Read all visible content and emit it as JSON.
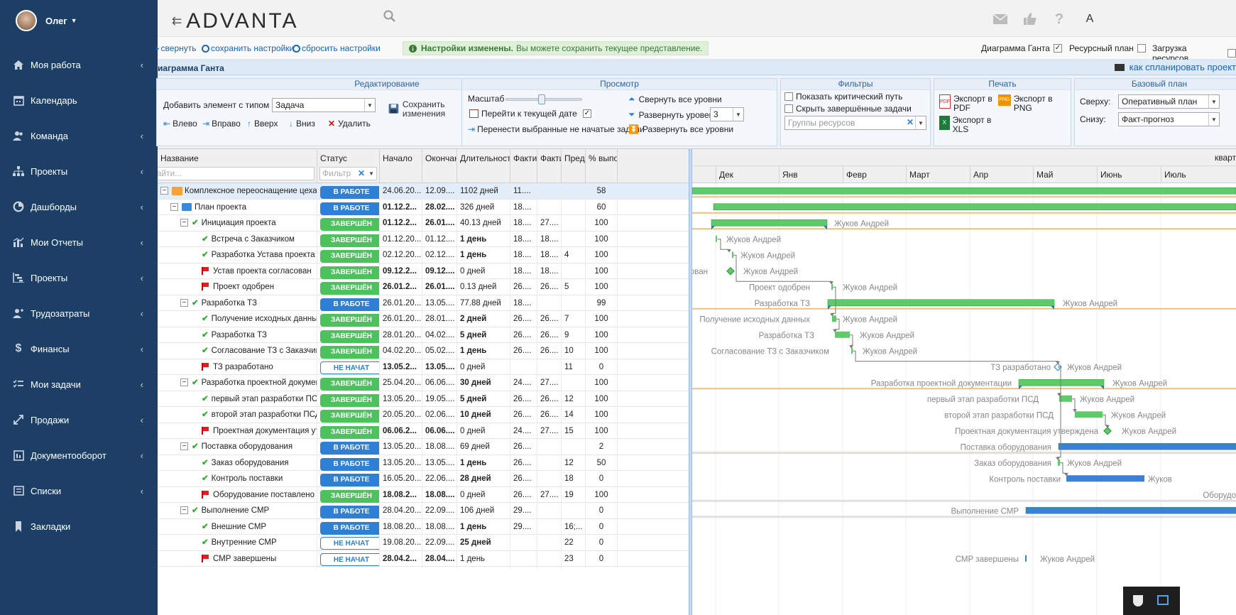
{
  "user": {
    "name": "Олег"
  },
  "nav": [
    {
      "label": "Моя работа",
      "icon": "home-icon",
      "chevron": true
    },
    {
      "label": "Календарь",
      "icon": "calendar-icon",
      "chevron": false
    },
    {
      "label": "Команда",
      "icon": "team-icon",
      "chevron": true
    },
    {
      "label": "Проекты",
      "icon": "hierarchy-icon",
      "chevron": true
    },
    {
      "label": "Дашборды",
      "icon": "dashboard-icon",
      "chevron": true
    },
    {
      "label": "Мои Отчеты",
      "icon": "reports-icon",
      "chevron": true
    },
    {
      "label": "Проекты",
      "icon": "gantt-icon",
      "chevron": true
    },
    {
      "label": "Трудозатраты",
      "icon": "labor-icon",
      "chevron": true
    },
    {
      "label": "Финансы",
      "icon": "dollar-icon",
      "chevron": true
    },
    {
      "label": "Мои задачи",
      "icon": "tasks-icon",
      "chevron": true
    },
    {
      "label": "Продажи",
      "icon": "sales-icon",
      "chevron": true
    },
    {
      "label": "Документооборот",
      "icon": "documents-icon",
      "chevron": true
    },
    {
      "label": "Списки",
      "icon": "list-icon",
      "chevron": true
    },
    {
      "label": "Закладки",
      "icon": "bookmark-icon",
      "chevron": false
    }
  ],
  "topbar": {
    "logo": "ADVANTA"
  },
  "toolbar": {
    "collapse": "свернуть",
    "save_settings": "сохранить настройки",
    "reset_settings": "сбросить настройки",
    "notice_bold": "Настройки изменены.",
    "notice_text": "Вы можете сохранить текущее представление.",
    "views": [
      {
        "label": "Диаграмма Ганта",
        "checked": true
      },
      {
        "label": "Ресурсный план",
        "checked": false
      },
      {
        "label": "Загрузка ресурсов",
        "checked": false
      }
    ]
  },
  "titlebar": {
    "title": "иаграмма Ганта",
    "how_link": "как спланировать проект"
  },
  "ribbon": {
    "edit": {
      "title": "Редактирование",
      "add_label": "Добавить элемент с типом",
      "add_type": "Задача",
      "save": "Сохранить изменения",
      "left": "Влево",
      "right": "Вправо",
      "up": "Вверх",
      "down": "Вниз",
      "delete": "Удалить"
    },
    "view": {
      "title": "Просмотр",
      "scale": "Масштаб",
      "goto_today": "Перейти к текущей дате",
      "move_unstarted": "Перенести выбранные не начатые задачи",
      "collapse_all": "Свернуть все уровни",
      "expand_level": "Развернуть уровень",
      "level": "3",
      "expand_all": "Развернуть все уровни"
    },
    "filters": {
      "title": "Фильтры",
      "critical_path": "Показать критический путь",
      "hide_done": "Скрыть завершённые задачи",
      "groups_placeholder": "Группы ресурсов"
    },
    "print": {
      "title": "Печать",
      "pdf": "Экспорт в PDF",
      "png": "Экспорт в PNG",
      "xls": "Экспорт в XLS"
    },
    "baseline": {
      "title": "Базовый план",
      "top_label": "Сверху:",
      "top_value": "Оперативный план",
      "bottom_label": "Снизу:",
      "bottom_value": "Факт-прогноз"
    }
  },
  "grid": {
    "columns": [
      "Название",
      "Статус",
      "Начало",
      "Окончани",
      "Длительность",
      "Факти",
      "Факти",
      "Предш",
      "% выпол"
    ],
    "search_placeholder": "Найти...",
    "filter_placeholder": "Фильтр",
    "rows": [
      {
        "level": 0,
        "toggle": true,
        "icon": "project",
        "name": "Комплексное переоснащение цеха для ОО",
        "status": "В РАБОТЕ",
        "st": "work",
        "start": "24.06.20...",
        "end": "12.09....",
        "dur": "1102 дней",
        "f1": "11....",
        "f2": "",
        "pred": "",
        "pct": "58",
        "bold": false
      },
      {
        "level": 1,
        "toggle": true,
        "icon": "folder",
        "name": "План проекта",
        "status": "В РАБОТЕ",
        "st": "work",
        "start": "01.12.2...",
        "end": "28.02....",
        "dur": "326 дней",
        "f1": "18....",
        "f2": "",
        "pred": "",
        "pct": "60",
        "bold": true
      },
      {
        "level": 2,
        "toggle": true,
        "icon": "check",
        "name": "Инициация проекта",
        "status": "ЗАВЕРШЁН",
        "st": "done",
        "start": "01.12.2...",
        "end": "26.01....",
        "dur": "40.13 дней",
        "f1": "18....",
        "f2": "27....",
        "pred": "",
        "pct": "100",
        "bold": true
      },
      {
        "level": 3,
        "toggle": false,
        "icon": "check",
        "name": "Встреча с Заказчиком",
        "status": "ЗАВЕРШЁН",
        "st": "done",
        "start": "01.12.20...",
        "end": "01.12....",
        "dur": "1 день",
        "f1": "18....",
        "f2": "18....",
        "pred": "",
        "pct": "100",
        "bold": false,
        "bdur": true
      },
      {
        "level": 3,
        "toggle": false,
        "icon": "check",
        "name": "Разработка Устава проекта",
        "status": "ЗАВЕРШЁН",
        "st": "done",
        "start": "02.12.20...",
        "end": "02.12....",
        "dur": "1 день",
        "f1": "18....",
        "f2": "18....",
        "pred": "4",
        "pct": "100",
        "bold": false,
        "bdur": true
      },
      {
        "level": 3,
        "toggle": false,
        "icon": "flag",
        "name": "Устав проекта согласован",
        "status": "ЗАВЕРШЁН",
        "st": "done",
        "start": "09.12.2...",
        "end": "09.12....",
        "dur": "0 дней",
        "f1": "18....",
        "f2": "18....",
        "pred": "",
        "pct": "100",
        "bold": true
      },
      {
        "level": 3,
        "toggle": false,
        "icon": "flag",
        "name": "Проект одобрен",
        "status": "ЗАВЕРШЁН",
        "st": "done",
        "start": "26.01.2...",
        "end": "26.01....",
        "dur": "0.13 дней",
        "f1": "26....",
        "f2": "26....",
        "pred": "5",
        "pct": "100",
        "bold": true
      },
      {
        "level": 2,
        "toggle": true,
        "icon": "check",
        "name": "Разработка ТЗ",
        "status": "В РАБОТЕ",
        "st": "work",
        "start": "26.01.20...",
        "end": "13.05....",
        "dur": "77.88 дней",
        "f1": "18....",
        "f2": "",
        "pred": "",
        "pct": "99",
        "bold": false
      },
      {
        "level": 3,
        "toggle": false,
        "icon": "check",
        "name": "Получение исходных данных",
        "status": "ЗАВЕРШЁН",
        "st": "done",
        "start": "26.01.20...",
        "end": "28.01....",
        "dur": "2 дней",
        "f1": "26....",
        "f2": "26....",
        "pred": "7",
        "pct": "100",
        "bold": false,
        "bdur": true
      },
      {
        "level": 3,
        "toggle": false,
        "icon": "check",
        "name": "Разработка ТЗ",
        "status": "ЗАВЕРШЁН",
        "st": "done",
        "start": "28.01.20...",
        "end": "04.02....",
        "dur": "5 дней",
        "f1": "26....",
        "f2": "26....",
        "pred": "9",
        "pct": "100",
        "bold": false,
        "bdur": true
      },
      {
        "level": 3,
        "toggle": false,
        "icon": "check",
        "name": "Согласование ТЗ с Заказчиком",
        "status": "ЗАВЕРШЁН",
        "st": "done",
        "start": "04.02.20...",
        "end": "05.02....",
        "dur": "1 день",
        "f1": "26....",
        "f2": "26....",
        "pred": "10",
        "pct": "100",
        "bold": false,
        "bdur": true
      },
      {
        "level": 3,
        "toggle": false,
        "icon": "flag",
        "name": "ТЗ разработано",
        "status": "НЕ НАЧАТ",
        "st": "new",
        "start": "13.05.2...",
        "end": "13.05....",
        "dur": "0 дней",
        "f1": "",
        "f2": "",
        "pred": "11",
        "pct": "0",
        "bold": true
      },
      {
        "level": 2,
        "toggle": true,
        "icon": "check",
        "name": "Разработка проектной документаци",
        "status": "ЗАВЕРШЁН",
        "st": "done",
        "start": "25.04.20...",
        "end": "06.06....",
        "dur": "30 дней",
        "f1": "24....",
        "f2": "27....",
        "pred": "",
        "pct": "100",
        "bold": false,
        "bdur": true
      },
      {
        "level": 3,
        "toggle": false,
        "icon": "check",
        "name": "первый этап разработки ПСД",
        "status": "ЗАВЕРШЁН",
        "st": "done",
        "start": "13.05.20...",
        "end": "19.05....",
        "dur": "5 дней",
        "f1": "26....",
        "f2": "26....",
        "pred": "12",
        "pct": "100",
        "bold": false,
        "bdur": true
      },
      {
        "level": 3,
        "toggle": false,
        "icon": "check",
        "name": "второй этап разработки ПСД",
        "status": "ЗАВЕРШЁН",
        "st": "done",
        "start": "20.05.20...",
        "end": "02.06....",
        "dur": "10 дней",
        "f1": "26....",
        "f2": "26....",
        "pred": "14",
        "pct": "100",
        "bold": false,
        "bdur": true
      },
      {
        "level": 3,
        "toggle": false,
        "icon": "flag",
        "name": "Проектная документация утвер",
        "status": "ЗАВЕРШЁН",
        "st": "done",
        "start": "06.06.2...",
        "end": "06.06....",
        "dur": "0 дней",
        "f1": "24....",
        "f2": "27....",
        "pred": "15",
        "pct": "100",
        "bold": true
      },
      {
        "level": 2,
        "toggle": true,
        "icon": "check",
        "name": "Поставка оборудования",
        "status": "В РАБОТЕ",
        "st": "work",
        "start": "13.05.20...",
        "end": "18.08....",
        "dur": "69 дней",
        "f1": "26....",
        "f2": "",
        "pred": "",
        "pct": "2",
        "bold": false
      },
      {
        "level": 3,
        "toggle": false,
        "icon": "check",
        "name": "Заказ оборудования",
        "status": "В РАБОТЕ",
        "st": "work",
        "start": "13.05.20...",
        "end": "13.05....",
        "dur": "1 день",
        "f1": "26....",
        "f2": "",
        "pred": "12",
        "pct": "50",
        "bold": false,
        "bdur": true
      },
      {
        "level": 3,
        "toggle": false,
        "icon": "check",
        "name": "Контроль поставки",
        "status": "В РАБОТЕ",
        "st": "work",
        "start": "16.05.20...",
        "end": "22.06....",
        "dur": "28 дней",
        "f1": "26....",
        "f2": "",
        "pred": "18",
        "pct": "0",
        "bold": false,
        "bdur": true
      },
      {
        "level": 3,
        "toggle": false,
        "icon": "flag",
        "name": "Оборудование поставлено",
        "status": "ЗАВЕРШЁН",
        "st": "done",
        "start": "18.08.2...",
        "end": "18.08....",
        "dur": "0 дней",
        "f1": "26....",
        "f2": "27....",
        "pred": "19",
        "pct": "100",
        "bold": true
      },
      {
        "level": 2,
        "toggle": true,
        "icon": "check",
        "name": "Выполнение СМР",
        "status": "В РАБОТЕ",
        "st": "work",
        "start": "28.04.20...",
        "end": "22.09....",
        "dur": "106 дней",
        "f1": "29....",
        "f2": "",
        "pred": "",
        "pct": "0",
        "bold": false
      },
      {
        "level": 3,
        "toggle": false,
        "icon": "check",
        "name": "Внешние СМР",
        "status": "В РАБОТЕ",
        "st": "work",
        "start": "18.08.20...",
        "end": "18.08....",
        "dur": "1 день",
        "f1": "29....",
        "f2": "",
        "pred": "16;...",
        "pct": "0",
        "bold": false,
        "bdur": true
      },
      {
        "level": 3,
        "toggle": false,
        "icon": "check",
        "name": "Внутренние СМР",
        "status": "НЕ НАЧАТ",
        "st": "new",
        "start": "19.08.20...",
        "end": "22.09....",
        "dur": "25 дней",
        "f1": "",
        "f2": "",
        "pred": "22",
        "pct": "0",
        "bold": false,
        "bdur": true
      },
      {
        "level": 3,
        "toggle": false,
        "icon": "flag",
        "name": "СМР завершены",
        "status": "НЕ НАЧАТ",
        "st": "new",
        "start": "28.04.2...",
        "end": "28.04....",
        "dur": "1 день",
        "f1": "",
        "f2": "",
        "pred": "23",
        "pct": "0",
        "bold": true
      }
    ]
  },
  "chart": {
    "quarter_label": "кварт",
    "months": [
      "Дек",
      "Янв",
      "Февр",
      "Март",
      "Апр",
      "Май",
      "Июнь",
      "Июль"
    ],
    "resource": "Жуков Андрей",
    "labels": {
      "r6": "Проект одобрен",
      "r7": "Разработка ТЗ",
      "r8": "Получение исходных данных",
      "r9": "Разработка ТЗ",
      "r10": "Согласование ТЗ с Заказчиком",
      "r11": "ТЗ разработано",
      "r12": "Разработка проектной документации",
      "r13": "первый этап разработки ПСД",
      "r14": "второй этап разработки ПСД",
      "r15": "Проектная документация утверждена",
      "r16": "Поставка оборудования",
      "r17": "Заказ оборудования",
      "r18": "Контроль поставки",
      "r19": "Оборудо",
      "r20": "Выполнение СМР",
      "r23": "СМР завершены",
      "r5": "ован",
      "r18b": "Жуков"
    }
  }
}
